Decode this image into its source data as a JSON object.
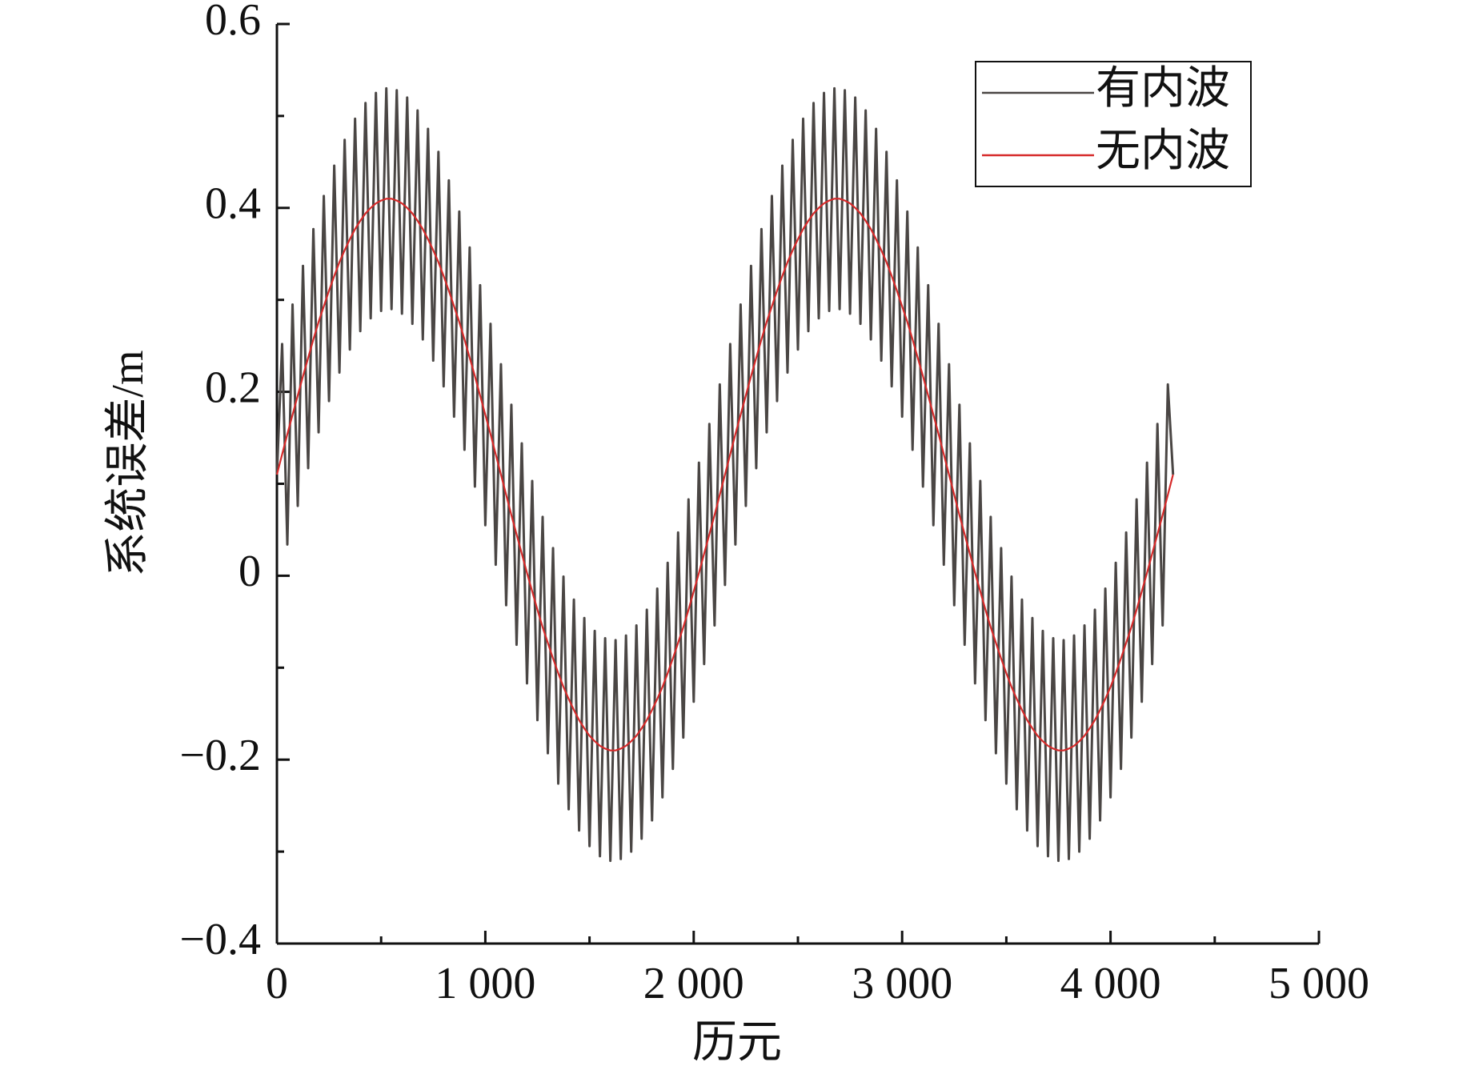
{
  "chart_data": {
    "type": "line",
    "ylabel": "系统误差/m",
    "xlabel": "历元",
    "x": [
      0,
      25,
      50,
      75,
      100,
      125,
      150,
      175,
      200,
      225,
      250,
      275,
      300,
      325,
      350,
      375,
      400,
      425,
      450,
      475,
      500,
      525,
      550,
      575,
      600,
      625,
      650,
      675,
      700,
      725,
      750,
      775,
      800,
      825,
      850,
      875,
      900,
      925,
      950,
      975,
      1000,
      1025,
      1050,
      1075,
      1100,
      1125,
      1150,
      1175,
      1200,
      1225,
      1250,
      1275,
      1300,
      1325,
      1350,
      1375,
      1400,
      1425,
      1450,
      1475,
      1500,
      1525,
      1550,
      1575,
      1600,
      1625,
      1650,
      1675,
      1700,
      1725,
      1750,
      1775,
      1800,
      1825,
      1850,
      1875,
      1900,
      1925,
      1950,
      1975,
      2000,
      2025,
      2050,
      2075,
      2100,
      2125,
      2150,
      2175,
      2200,
      2225,
      2250,
      2275,
      2300,
      2325,
      2350,
      2375,
      2400,
      2425,
      2450,
      2475,
      2500,
      2525,
      2550,
      2575,
      2600,
      2625,
      2650,
      2675,
      2700,
      2725,
      2750,
      2775,
      2800,
      2825,
      2850,
      2875,
      2900,
      2925,
      2950,
      2975,
      3000,
      3025,
      3050,
      3075,
      3100,
      3125,
      3150,
      3175,
      3200,
      3225,
      3250,
      3275,
      3300,
      3325,
      3350,
      3375,
      3400,
      3425,
      3450,
      3475,
      3500,
      3525,
      3550,
      3575,
      3600,
      3625,
      3650,
      3675,
      3700,
      3725,
      3750,
      3775,
      3800,
      3825,
      3850,
      3875,
      3900,
      3925,
      3950,
      3975,
      4000,
      4025,
      4050,
      4075,
      4100,
      4125,
      4150,
      4175,
      4200,
      4225,
      4250,
      4275,
      4300
    ],
    "series": [
      {
        "name": "有内波",
        "color": "#4a4644",
        "values": [
          0.11,
          0.252,
          0.034,
          0.295,
          0.076,
          0.337,
          0.117,
          0.377,
          0.156,
          0.413,
          0.19,
          0.446,
          0.221,
          0.474,
          0.246,
          0.497,
          0.266,
          0.514,
          0.28,
          0.525,
          0.288,
          0.53,
          0.29,
          0.528,
          0.285,
          0.52,
          0.274,
          0.506,
          0.257,
          0.486,
          0.234,
          0.461,
          0.206,
          0.43,
          0.173,
          0.396,
          0.137,
          0.357,
          0.097,
          0.316,
          0.055,
          0.274,
          0.012,
          0.23,
          -0.032,
          0.186,
          -0.075,
          0.144,
          -0.117,
          0.103,
          -0.157,
          0.064,
          -0.193,
          0.03,
          -0.226,
          -0.001,
          -0.254,
          -0.026,
          -0.277,
          -0.046,
          -0.294,
          -0.06,
          -0.305,
          -0.068,
          -0.31,
          -0.07,
          -0.308,
          -0.065,
          -0.3,
          -0.054,
          -0.286,
          -0.037,
          -0.266,
          -0.014,
          -0.241,
          0.014,
          -0.21,
          0.047,
          -0.176,
          0.083,
          -0.137,
          0.123,
          -0.096,
          0.165,
          -0.054,
          0.208,
          -0.01,
          0.252,
          0.034,
          0.295,
          0.076,
          0.337,
          0.117,
          0.377,
          0.156,
          0.413,
          0.19,
          0.446,
          0.221,
          0.474,
          0.246,
          0.497,
          0.266,
          0.514,
          0.28,
          0.525,
          0.288,
          0.53,
          0.29,
          0.528,
          0.285,
          0.52,
          0.274,
          0.506,
          0.257,
          0.486,
          0.234,
          0.461,
          0.206,
          0.43,
          0.173,
          0.396,
          0.137,
          0.357,
          0.097,
          0.316,
          0.055,
          0.274,
          0.012,
          0.23,
          -0.032,
          0.186,
          -0.075,
          0.144,
          -0.117,
          0.103,
          -0.157,
          0.064,
          -0.193,
          0.03,
          -0.226,
          -0.001,
          -0.254,
          -0.026,
          -0.277,
          -0.046,
          -0.294,
          -0.06,
          -0.305,
          -0.068,
          -0.31,
          -0.07,
          -0.308,
          -0.065,
          -0.3,
          -0.054,
          -0.286,
          -0.037,
          -0.266,
          -0.014,
          -0.241,
          0.014,
          -0.21,
          0.047,
          -0.176,
          0.083,
          -0.137,
          0.123,
          -0.096,
          0.165,
          -0.054,
          0.208,
          0.11
        ]
      },
      {
        "name": "无内波",
        "color": "#d62a2a",
        "values": [
          0.11,
          0.132,
          0.154,
          0.175,
          0.196,
          0.217,
          0.237,
          0.257,
          0.276,
          0.293,
          0.31,
          0.326,
          0.341,
          0.354,
          0.366,
          0.377,
          0.386,
          0.394,
          0.4,
          0.405,
          0.408,
          0.41,
          0.41,
          0.408,
          0.405,
          0.4,
          0.394,
          0.386,
          0.377,
          0.366,
          0.354,
          0.341,
          0.326,
          0.31,
          0.293,
          0.276,
          0.257,
          0.237,
          0.217,
          0.196,
          0.175,
          0.154,
          0.132,
          0.11,
          0.088,
          0.066,
          0.045,
          0.024,
          0.003,
          -0.017,
          -0.037,
          -0.056,
          -0.073,
          -0.09,
          -0.106,
          -0.121,
          -0.134,
          -0.146,
          -0.157,
          -0.166,
          -0.174,
          -0.18,
          -0.185,
          -0.188,
          -0.19,
          -0.19,
          -0.188,
          -0.185,
          -0.18,
          -0.174,
          -0.166,
          -0.157,
          -0.146,
          -0.134,
          -0.121,
          -0.106,
          -0.09,
          -0.073,
          -0.056,
          -0.037,
          -0.017,
          0.003,
          0.024,
          0.045,
          0.066,
          0.088,
          0.11,
          0.132,
          0.154,
          0.175,
          0.196,
          0.217,
          0.237,
          0.257,
          0.276,
          0.293,
          0.31,
          0.326,
          0.341,
          0.354,
          0.366,
          0.377,
          0.386,
          0.394,
          0.4,
          0.405,
          0.408,
          0.41,
          0.41,
          0.408,
          0.405,
          0.4,
          0.394,
          0.386,
          0.377,
          0.366,
          0.354,
          0.341,
          0.326,
          0.31,
          0.293,
          0.276,
          0.257,
          0.237,
          0.217,
          0.196,
          0.175,
          0.154,
          0.132,
          0.11,
          0.088,
          0.066,
          0.045,
          0.024,
          0.003,
          -0.017,
          -0.037,
          -0.056,
          -0.073,
          -0.09,
          -0.106,
          -0.121,
          -0.134,
          -0.146,
          -0.157,
          -0.166,
          -0.174,
          -0.18,
          -0.185,
          -0.188,
          -0.19,
          -0.19,
          -0.188,
          -0.185,
          -0.18,
          -0.174,
          -0.166,
          -0.157,
          -0.146,
          -0.134,
          -0.121,
          -0.106,
          -0.09,
          -0.073,
          -0.056,
          -0.037,
          -0.017,
          0.003,
          0.024,
          0.045,
          0.066,
          0.088,
          0.11
        ]
      }
    ],
    "xlim": [
      0,
      5000
    ],
    "xticks": [
      0,
      {
        "value": 1000,
        "label": "1 000"
      },
      {
        "value": 2000,
        "label": "2 000"
      },
      {
        "value": 3000,
        "label": "3 000"
      },
      {
        "value": 4000,
        "label": "4 000"
      },
      {
        "value": 5000,
        "label": "5 000"
      }
    ],
    "ylim": [
      -0.4,
      0.6
    ],
    "yticks": [
      {
        "value": -0.4,
        "label": "−0.4"
      },
      {
        "value": -0.2,
        "label": "−0.2"
      },
      0,
      0.2,
      0.4,
      0.6
    ],
    "grid": false,
    "legend": "upper right"
  }
}
